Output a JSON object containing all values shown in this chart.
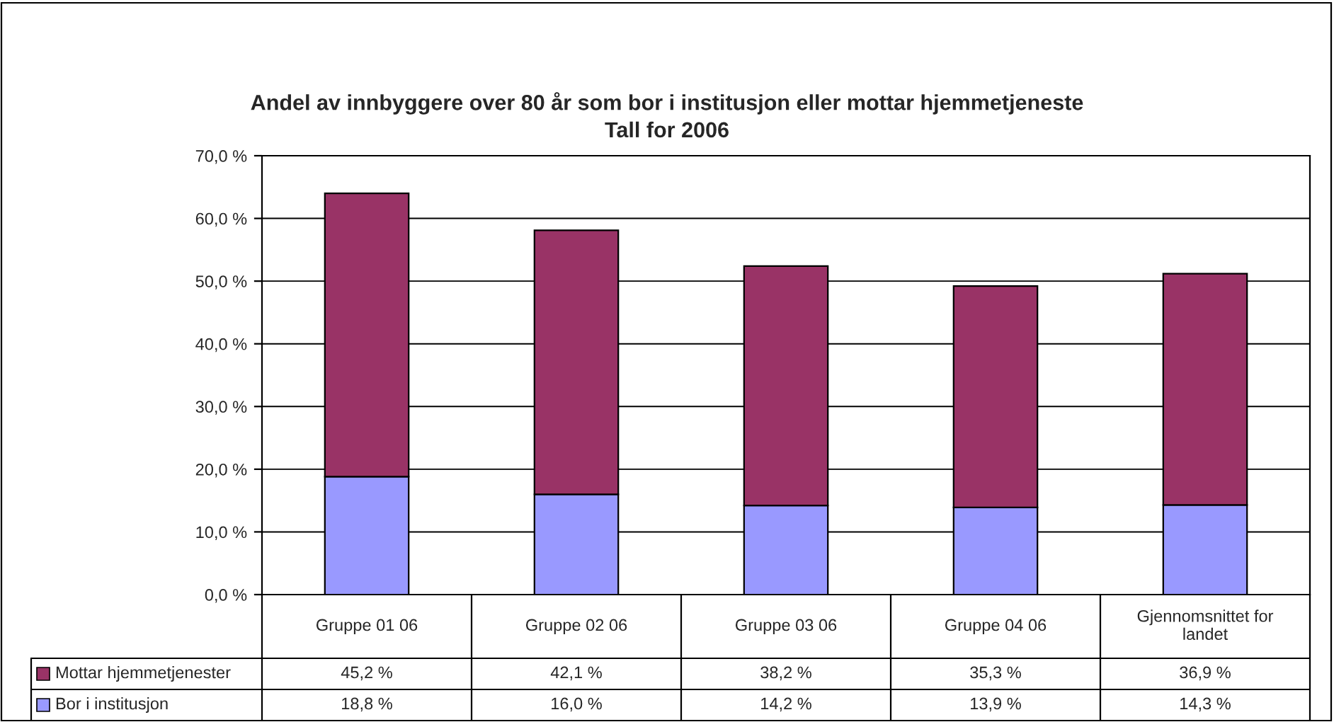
{
  "chart_data": {
    "type": "bar",
    "stacked": true,
    "title": "Andel av innbyggere over 80 år som bor i institusjon eller mottar hjemmetjeneste",
    "subtitle": "Tall for 2006",
    "categories": [
      "Gruppe 01 06",
      "Gruppe 02 06",
      "Gruppe 03 06",
      "Gruppe 04 06",
      "Gjennomsnittet for landet"
    ],
    "series": [
      {
        "name": "Bor i institusjon",
        "color": "#9999ff",
        "values": [
          18.8,
          16.0,
          14.2,
          13.9,
          14.3
        ],
        "value_labels": [
          "18,8 %",
          "16,0 %",
          "14,2 %",
          "13,9 %",
          "14,3 %"
        ]
      },
      {
        "name": "Mottar hjemmetjenester",
        "color": "#993366",
        "values": [
          45.2,
          42.1,
          38.2,
          35.3,
          36.9
        ],
        "value_labels": [
          "45,2 %",
          "42,1 %",
          "38,2 %",
          "35,3 %",
          "36,9 %"
        ]
      }
    ],
    "ylim": [
      0,
      70
    ],
    "yticks": [
      {
        "value": 0,
        "label": "0,0 %"
      },
      {
        "value": 10,
        "label": "10,0 %"
      },
      {
        "value": 20,
        "label": "20,0 %"
      },
      {
        "value": 30,
        "label": "30,0 %"
      },
      {
        "value": 40,
        "label": "40,0 %"
      },
      {
        "value": 50,
        "label": "50,0 %"
      },
      {
        "value": 60,
        "label": "60,0 %"
      },
      {
        "value": 70,
        "label": "70,0 %"
      }
    ],
    "grid": "y",
    "legend": "bottom"
  }
}
